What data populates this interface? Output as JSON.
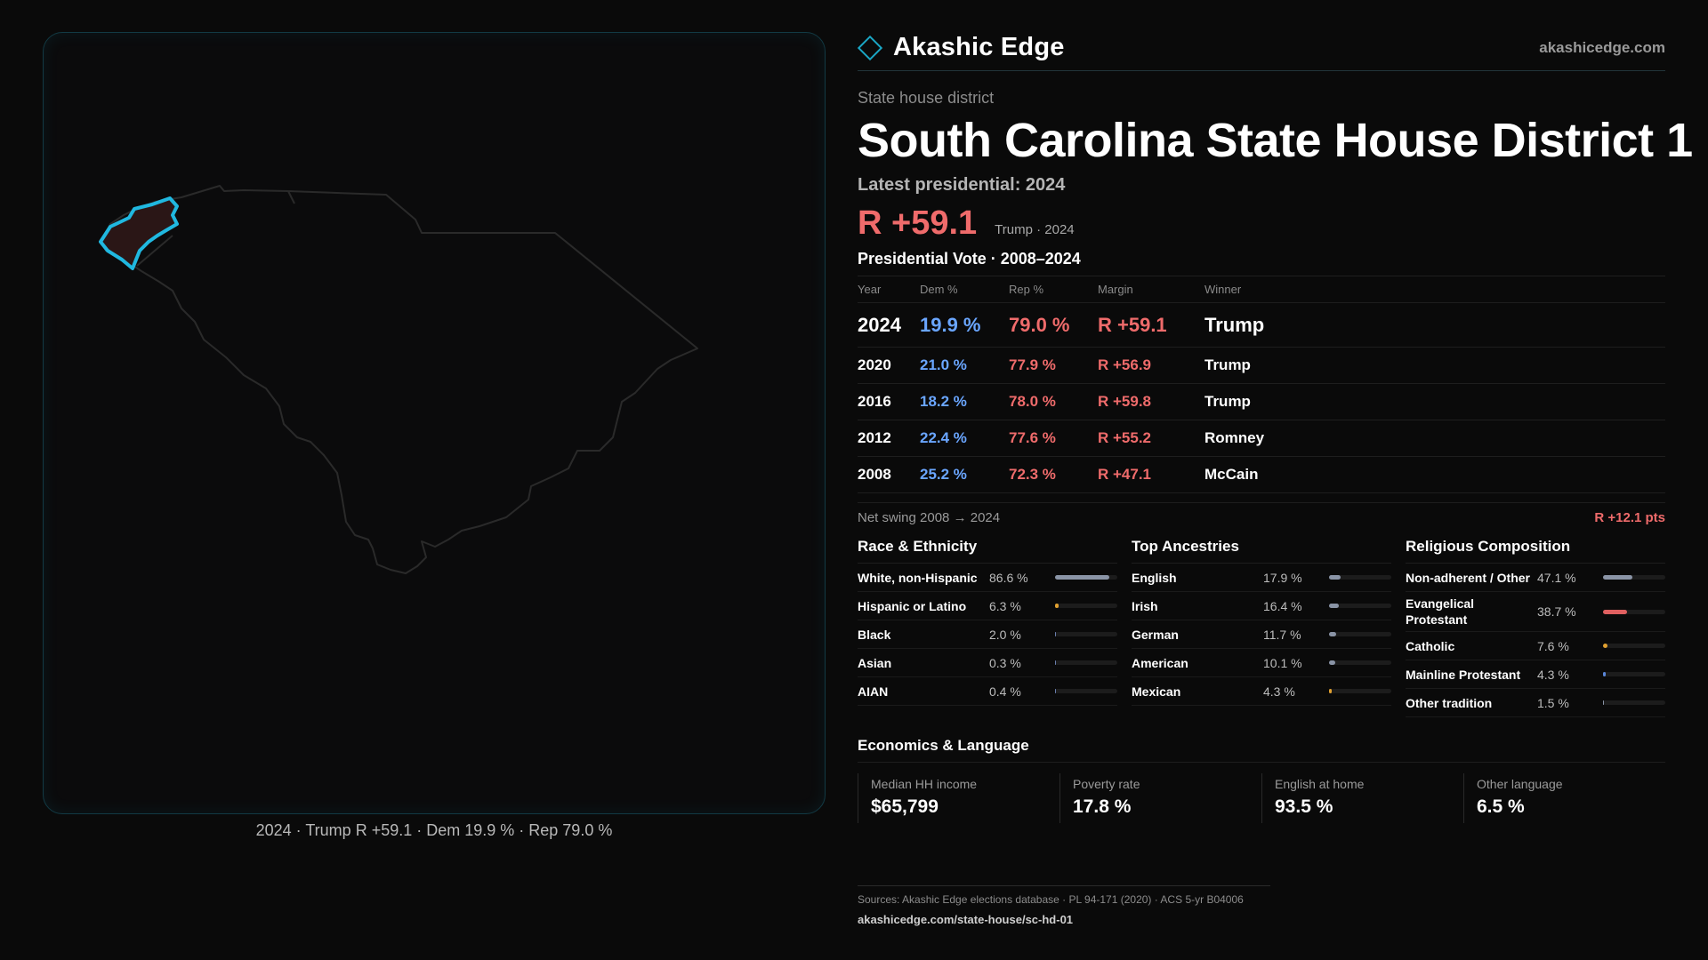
{
  "map": {
    "caption": "2024 · Trump R +59.1 · Dem 19.9 % · Rep 79.0 %"
  },
  "header": {
    "brand": "Akashic Edge",
    "url": "akashicedge.com"
  },
  "district": {
    "kicker": "State house district",
    "title": "South Carolina State House District 1",
    "latest_label": "Latest presidential: 2024",
    "margin": "R +59.1",
    "margin_note": "Trump · 2024"
  },
  "presidential": {
    "title": "Presidential Vote · 2008–2024",
    "columns": [
      "Year",
      "Dem %",
      "Rep %",
      "Margin",
      "Winner"
    ],
    "rows": [
      {
        "year": "2024",
        "dem": "19.9 %",
        "rep": "79.0 %",
        "margin": "R +59.1",
        "winner": "Trump"
      },
      {
        "year": "2020",
        "dem": "21.0 %",
        "rep": "77.9 %",
        "margin": "R +56.9",
        "winner": "Trump"
      },
      {
        "year": "2016",
        "dem": "18.2 %",
        "rep": "78.0 %",
        "margin": "R +59.8",
        "winner": "Trump"
      },
      {
        "year": "2012",
        "dem": "22.4 %",
        "rep": "77.6 %",
        "margin": "R +55.2",
        "winner": "Romney"
      },
      {
        "year": "2008",
        "dem": "25.2 %",
        "rep": "72.3 %",
        "margin": "R +47.1",
        "winner": "McCain"
      }
    ],
    "swing_label": "Net swing 2008 → 2024",
    "swing_value": "R +12.1 pts"
  },
  "race": {
    "title": "Race & Ethnicity",
    "rows": [
      {
        "label": "White, non-Hispanic",
        "pct": "86.6 %",
        "value": 86.6,
        "color": "#8a94a6"
      },
      {
        "label": "Hispanic or Latino",
        "pct": "6.3 %",
        "value": 6.3,
        "color": "#e0a030"
      },
      {
        "label": "Black",
        "pct": "2.0 %",
        "value": 2.0,
        "color": "#6a7fb0"
      },
      {
        "label": "Asian",
        "pct": "0.3 %",
        "value": 0.3,
        "color": "#6a7fb0"
      },
      {
        "label": "AIAN",
        "pct": "0.4 %",
        "value": 0.4,
        "color": "#6a7fb0"
      }
    ]
  },
  "ancestry": {
    "title": "Top Ancestries",
    "rows": [
      {
        "label": "English",
        "pct": "17.9 %",
        "value": 17.9,
        "color": "#8a94a6"
      },
      {
        "label": "Irish",
        "pct": "16.4 %",
        "value": 16.4,
        "color": "#8a94a6"
      },
      {
        "label": "German",
        "pct": "11.7 %",
        "value": 11.7,
        "color": "#8a94a6"
      },
      {
        "label": "American",
        "pct": "10.1 %",
        "value": 10.1,
        "color": "#8a94a6"
      },
      {
        "label": "Mexican",
        "pct": "4.3 %",
        "value": 4.3,
        "color": "#e0a030"
      }
    ]
  },
  "religion": {
    "title": "Religious Composition",
    "rows": [
      {
        "label": "Non-adherent / Other",
        "pct": "47.1 %",
        "value": 47.1,
        "color": "#8a94a6"
      },
      {
        "label": "Evangelical Protestant",
        "pct": "38.7 %",
        "value": 38.7,
        "color": "#e06060"
      },
      {
        "label": "Catholic",
        "pct": "7.6 %",
        "value": 7.6,
        "color": "#e0a030"
      },
      {
        "label": "Mainline Protestant",
        "pct": "4.3 %",
        "value": 4.3,
        "color": "#5a86d8"
      },
      {
        "label": "Other tradition",
        "pct": "1.5 %",
        "value": 1.5,
        "color": "#8a94a6"
      }
    ]
  },
  "economics": {
    "title": "Economics & Language",
    "items": [
      {
        "label": "Median HH income",
        "value": "$65,799"
      },
      {
        "label": "Poverty rate",
        "value": "17.8 %"
      },
      {
        "label": "English at home",
        "value": "93.5 %"
      },
      {
        "label": "Other language",
        "value": "6.5 %"
      }
    ]
  },
  "sources": {
    "line": "Sources: Akashic Edge elections database · PL 94-171 (2020) · ACS 5-yr B04006",
    "url": "akashicedge.com/state-house/sc-hd-01"
  },
  "colors": {
    "accent": "#1aa6c4",
    "dem": "#6aa6ff",
    "rep": "#ef6b6b"
  }
}
